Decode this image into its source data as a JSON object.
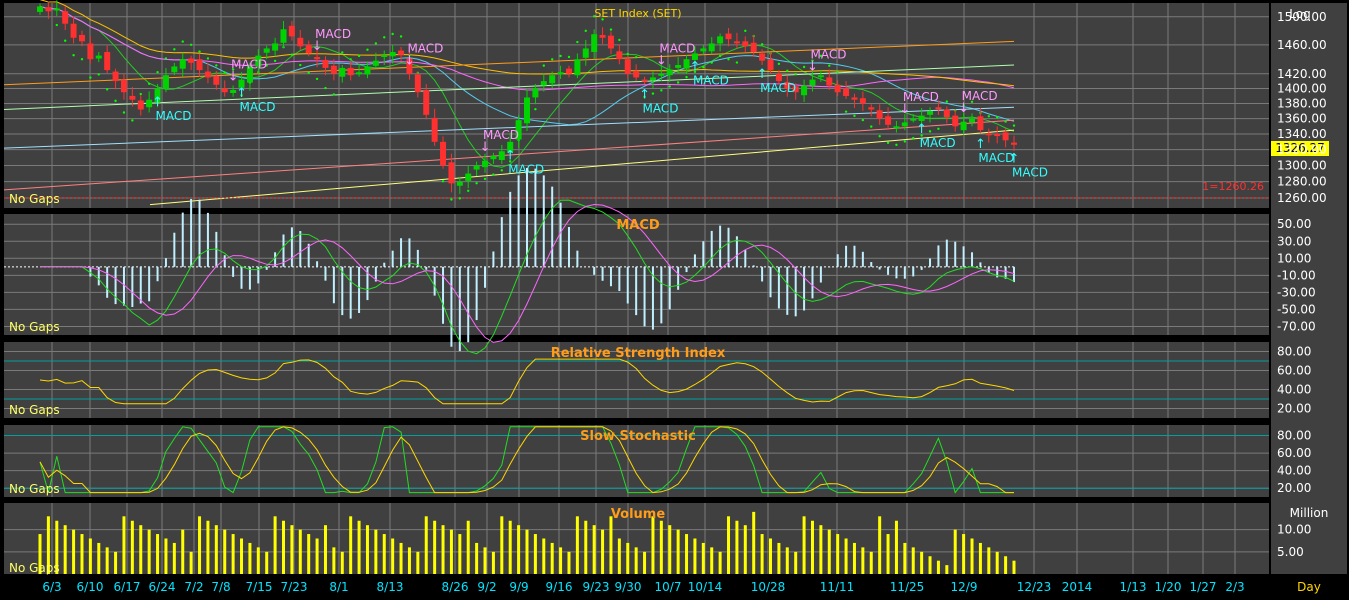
{
  "colors": {
    "background": "#000000",
    "panel": "#404040",
    "grid": "#7a7a7a",
    "axis_text": "#ffffff",
    "date_text": "#00e5ff",
    "title_orange": "#ff9c1a",
    "title_yellow": "#ffd700",
    "up_candle": "#00d400",
    "down_candle": "#ff3030",
    "price_label_bg": "#ffff00",
    "support_line": "#ff2020",
    "buy_signal": "#33ffff",
    "sell_signal": "#ff99ff",
    "sar_dots": "#00ff00",
    "no_gaps_text": "#ffff66"
  },
  "chart_data": [
    {
      "type": "candlestick",
      "title": "SET Index (SET)",
      "scale_label": "Log",
      "last_price_label": "1326.27",
      "support_label": "1=1260.26",
      "support_value": 1260.26,
      "no_gaps_label": "No Gaps",
      "y_ticks": [
        "1500.00",
        "1460.00",
        "1420.00",
        "1400.00",
        "1380.00",
        "1360.00",
        "1340.00",
        "1320.00",
        "1300.00",
        "1280.00",
        "1260.00"
      ],
      "x_ticks": [
        "6/3",
        "6/10",
        "6/17",
        "6/24",
        "7/2",
        "7/8",
        "7/15",
        "7/23",
        "8/1",
        "8/13",
        "8/26",
        "9/2",
        "9/9",
        "9/16",
        "9/23",
        "9/30",
        "10/7",
        "10/14",
        "10/28",
        "11/11",
        "11/25",
        "12/9",
        "12/23",
        "2014",
        "1/13",
        "1/20",
        "1/27",
        "2/3"
      ],
      "close_series": [
        1515,
        1508,
        1512,
        1490,
        1470,
        1465,
        1440,
        1445,
        1425,
        1410,
        1395,
        1385,
        1372,
        1385,
        1400,
        1418,
        1430,
        1440,
        1435,
        1425,
        1415,
        1405,
        1395,
        1398,
        1412,
        1430,
        1445,
        1455,
        1462,
        1482,
        1472,
        1458,
        1448,
        1440,
        1428,
        1420,
        1428,
        1418,
        1422,
        1430,
        1438,
        1446,
        1450,
        1446,
        1420,
        1395,
        1365,
        1330,
        1300,
        1278,
        1280,
        1290,
        1300,
        1306,
        1312,
        1318,
        1330,
        1358,
        1388,
        1400,
        1410,
        1418,
        1422,
        1420,
        1440,
        1455,
        1475,
        1470,
        1455,
        1440,
        1420,
        1415,
        1410,
        1415,
        1420,
        1426,
        1432,
        1440,
        1448,
        1455,
        1462,
        1472,
        1468,
        1464,
        1458,
        1450,
        1438,
        1425,
        1410,
        1400,
        1395,
        1404,
        1412,
        1418,
        1404,
        1395,
        1390,
        1385,
        1380,
        1372,
        1360,
        1352,
        1350,
        1355,
        1360,
        1364,
        1370,
        1374,
        1362,
        1350,
        1356,
        1360,
        1345,
        1340,
        1338,
        1332,
        1326.27
      ],
      "buy_signals": [
        {
          "label": "MACD"
        },
        {
          "label": "MACD"
        },
        {
          "label": "MACD"
        },
        {
          "label": "MACD"
        },
        {
          "label": "MACD"
        },
        {
          "label": "MACD"
        },
        {
          "label": "MACD"
        },
        {
          "label": "MACD"
        },
        {
          "label": "MACD"
        }
      ],
      "sell_signals": [
        {
          "label": "MACD"
        },
        {
          "label": "MACD"
        },
        {
          "label": "MACD"
        },
        {
          "label": "MACD"
        },
        {
          "label": "MACD"
        },
        {
          "label": "MACD"
        },
        {
          "label": "MACD"
        },
        {
          "label": "MACD"
        }
      ]
    },
    {
      "type": "line",
      "title": "MACD",
      "no_gaps_label": "No Gaps",
      "y_ticks": [
        "50.00",
        "30.00",
        "10.00",
        "-10.00",
        "-30.00",
        "-50.00",
        "-70.00"
      ]
    },
    {
      "type": "line",
      "title": "Relative Strength Index",
      "no_gaps_label": "No Gaps",
      "y_ticks": [
        "80.00",
        "60.00",
        "40.00",
        "20.00"
      ],
      "bands": [
        70,
        30
      ]
    },
    {
      "type": "line",
      "title": "Slow Stochastic",
      "no_gaps_label": "No Gaps",
      "y_ticks": [
        "80.00",
        "60.00",
        "40.00",
        "20.00"
      ],
      "bands": [
        80,
        20
      ]
    },
    {
      "type": "bar",
      "title": "Volume",
      "units_label": "Million",
      "no_gaps_label": "No Gaps",
      "y_ticks": [
        "10.00",
        "5.00"
      ]
    }
  ],
  "footer": {
    "period_label": "Day"
  }
}
